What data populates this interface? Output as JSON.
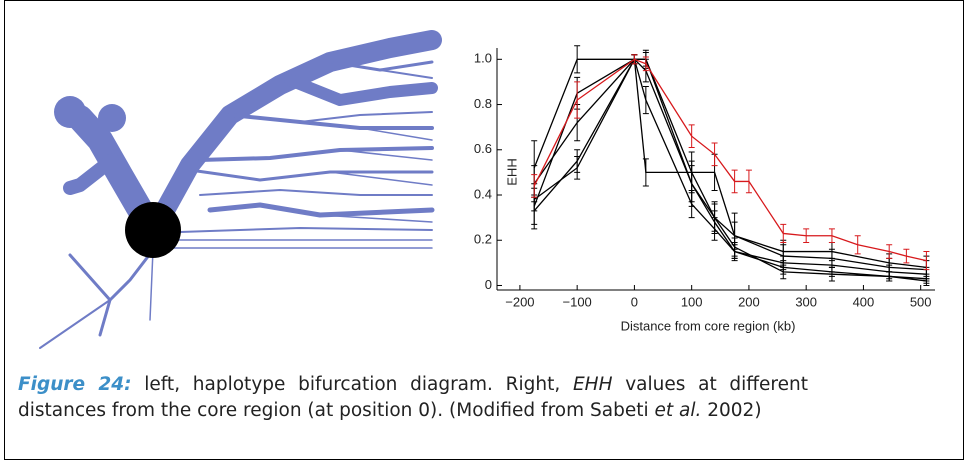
{
  "chart_data": {
    "type": "line",
    "ylabel": "EHH",
    "xlabel": "Distance from core region (kb)",
    "xlim": [
      -240,
      525
    ],
    "ylim": [
      -0.02,
      1.05
    ],
    "xticks": [
      {
        "value": -200,
        "label": "−200"
      },
      {
        "value": -100,
        "label": "−100"
      },
      0,
      100,
      200,
      300,
      400,
      500
    ],
    "yticks": [
      0,
      0.2,
      0.4,
      0.6,
      0.8,
      {
        "value": 1,
        "label": "1.0"
      }
    ],
    "series": [
      {
        "color": "#000000",
        "x": [
          -175,
          -100,
          0,
          20,
          140,
          175,
          260,
          345,
          445,
          510
        ],
        "values": [
          0.52,
          1.0,
          1.0,
          0.5,
          0.5,
          0.22,
          0.15,
          0.15,
          0.1,
          0.08
        ],
        "errors": [
          0.12,
          0.06,
          0.02,
          0.06,
          0.08,
          0.1,
          0.05,
          0.04,
          0.04,
          0.05
        ]
      },
      {
        "color": "#000000",
        "x": [
          -175,
          -100,
          0,
          20,
          100,
          140,
          175,
          260,
          345,
          445,
          510
        ],
        "values": [
          0.35,
          0.85,
          1.0,
          1.0,
          0.45,
          0.3,
          0.22,
          0.13,
          0.12,
          0.08,
          0.07
        ],
        "errors": [
          0.1,
          0.07,
          0.02,
          0.04,
          0.08,
          0.07,
          0.06,
          0.05,
          0.04,
          0.04,
          0.04
        ]
      },
      {
        "color": "#000000",
        "x": [
          -175,
          -100,
          0,
          20,
          100,
          140,
          175,
          260,
          345,
          445,
          510
        ],
        "values": [
          0.33,
          0.55,
          1.0,
          0.95,
          0.45,
          0.28,
          0.15,
          0.1,
          0.09,
          0.06,
          0.05
        ],
        "errors": [
          0.06,
          0.05,
          0.02,
          0.05,
          0.1,
          0.05,
          0.04,
          0.03,
          0.03,
          0.03,
          0.03
        ]
      },
      {
        "color": "#000000",
        "x": [
          -175,
          -100,
          0,
          20,
          100,
          140,
          175,
          260,
          345,
          445,
          510
        ],
        "values": [
          0.38,
          0.52,
          1.0,
          0.82,
          0.36,
          0.25,
          0.15,
          0.08,
          0.06,
          0.04,
          0.03
        ],
        "errors": [
          0.05,
          0.05,
          0.02,
          0.06,
          0.06,
          0.05,
          0.03,
          0.03,
          0.02,
          0.02,
          0.02
        ]
      },
      {
        "color": "#000000",
        "x": [
          -175,
          -100,
          0,
          20,
          100,
          140,
          175,
          260,
          345,
          445,
          510
        ],
        "values": [
          0.45,
          0.72,
          1.0,
          1.0,
          0.5,
          0.3,
          0.17,
          0.06,
          0.05,
          0.04,
          0.02
        ],
        "errors": [
          0.08,
          0.08,
          0.02,
          0.03,
          0.09,
          0.06,
          0.04,
          0.03,
          0.03,
          0.02,
          0.02
        ]
      },
      {
        "color": "#d7191c",
        "x": [
          -175,
          -100,
          0,
          20,
          100,
          140,
          175,
          200,
          260,
          300,
          345,
          390,
          445,
          475,
          510
        ],
        "values": [
          0.44,
          0.82,
          1.0,
          0.98,
          0.66,
          0.58,
          0.46,
          0.46,
          0.23,
          0.22,
          0.22,
          0.18,
          0.15,
          0.13,
          0.11
        ],
        "errors": [
          0.05,
          0.08,
          0.02,
          0.03,
          0.05,
          0.05,
          0.05,
          0.05,
          0.04,
          0.03,
          0.03,
          0.04,
          0.03,
          0.03,
          0.04
        ]
      }
    ]
  },
  "caption": {
    "label": "Figure 24:",
    "text1": " left, haplotype bifurcation diagram. Right, ",
    "term": "EHH",
    "text2": " values at different distances from the core region (at position 0). (Modified from Sabeti ",
    "etal": "et al.",
    "text3": " 2002)"
  }
}
